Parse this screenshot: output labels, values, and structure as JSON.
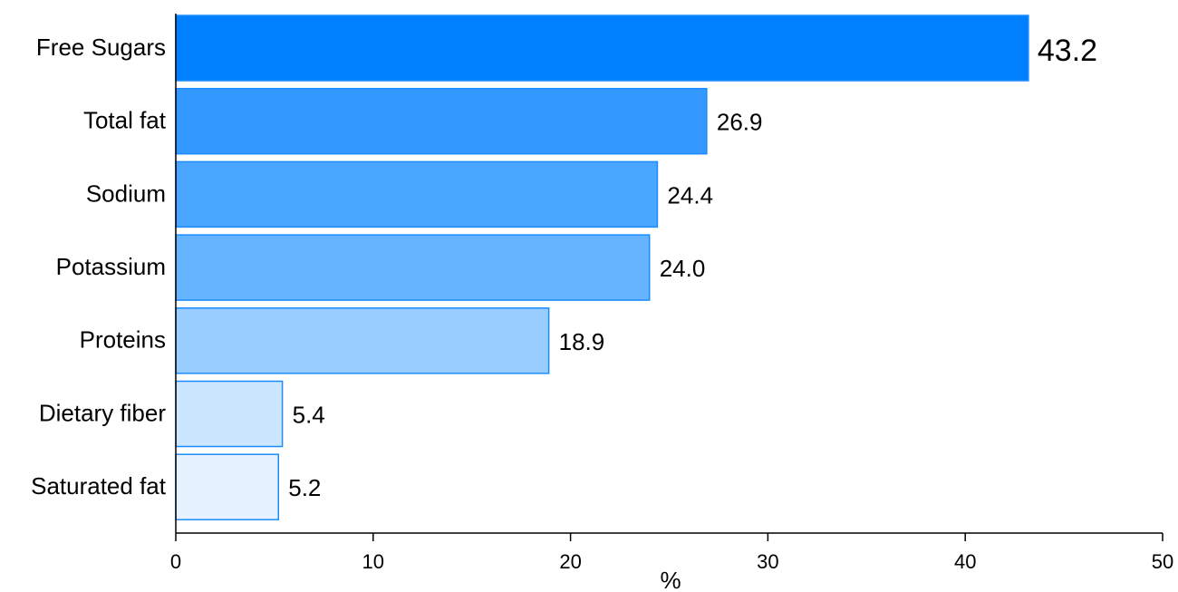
{
  "chart_data": {
    "type": "bar",
    "orientation": "horizontal",
    "categories": [
      "Free Sugars",
      "Total fat",
      "Sodium",
      "Potassium",
      "Proteins",
      "Dietary fiber",
      "Saturated fat"
    ],
    "values": [
      43.2,
      26.9,
      24.4,
      24.0,
      18.9,
      5.4,
      5.2
    ],
    "value_labels": [
      "43.2",
      "26.9",
      "24.4",
      "24.0",
      "18.9",
      "5.4",
      "5.2"
    ],
    "bar_colors": [
      "#0080ff",
      "#3398ff",
      "#4ba6ff",
      "#66b3ff",
      "#99ccff",
      "#cce6ff",
      "#e6f2ff"
    ],
    "bar_edge_color": "#1a8cff",
    "title": "",
    "xlabel": "%",
    "ylabel": "",
    "xlim": [
      0,
      50
    ],
    "xticks": [
      0,
      10,
      20,
      30,
      40,
      50
    ],
    "xtick_labels": [
      "0",
      "10",
      "20",
      "30",
      "40",
      "50"
    ],
    "grid": false,
    "legend": "none"
  }
}
